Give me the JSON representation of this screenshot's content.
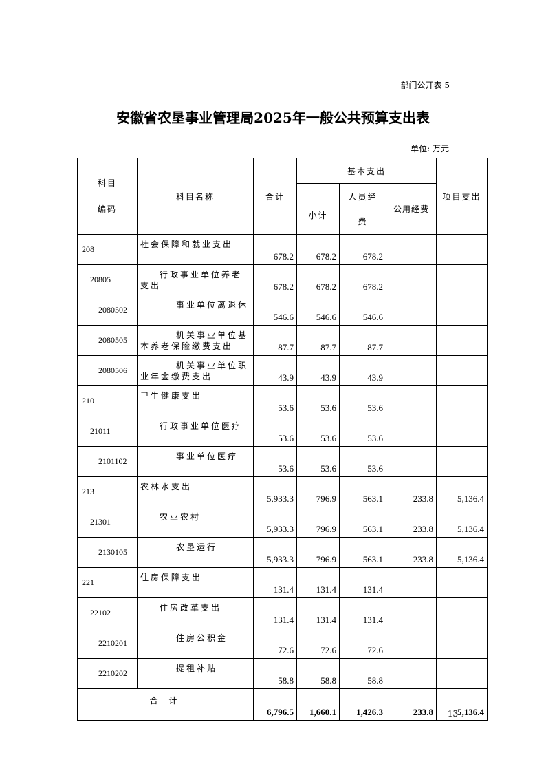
{
  "doc_tag": "部门公开表 5",
  "title": "安徽省农垦事业管理局2025年一般公共预算支出表",
  "unit": "单位: 万元",
  "headers": {
    "code": "科目编码",
    "code_l1": "科目",
    "code_l2": "编码",
    "name": "科目名称",
    "total": "合计",
    "basic": "基本支出",
    "subtotal": "小计",
    "personnel": "人员经费",
    "personnel_l1": "人员经",
    "personnel_l2": "费",
    "public": "公用经费",
    "project": "项目支出"
  },
  "rows": [
    {
      "level": 1,
      "code": "208",
      "name": "社会保障和就业支出",
      "total": "678.2",
      "subtotal": "678.2",
      "personnel": "678.2",
      "public": "",
      "project": ""
    },
    {
      "level": 2,
      "code": "20805",
      "name": "行政事业单位养老支出",
      "total": "678.2",
      "subtotal": "678.2",
      "personnel": "678.2",
      "public": "",
      "project": ""
    },
    {
      "level": 3,
      "code": "2080502",
      "name": "事业单位离退休",
      "total": "546.6",
      "subtotal": "546.6",
      "personnel": "546.6",
      "public": "",
      "project": ""
    },
    {
      "level": 3,
      "code": "2080505",
      "name": "机关事业单位基本养老保险缴费支出",
      "total": "87.7",
      "subtotal": "87.7",
      "personnel": "87.7",
      "public": "",
      "project": ""
    },
    {
      "level": 3,
      "code": "2080506",
      "name": "机关事业单位职业年金缴费支出",
      "total": "43.9",
      "subtotal": "43.9",
      "personnel": "43.9",
      "public": "",
      "project": ""
    },
    {
      "level": 1,
      "code": "210",
      "name": "卫生健康支出",
      "total": "53.6",
      "subtotal": "53.6",
      "personnel": "53.6",
      "public": "",
      "project": ""
    },
    {
      "level": 2,
      "code": "21011",
      "name": "行政事业单位医疗",
      "total": "53.6",
      "subtotal": "53.6",
      "personnel": "53.6",
      "public": "",
      "project": ""
    },
    {
      "level": 3,
      "code": "2101102",
      "name": "事业单位医疗",
      "total": "53.6",
      "subtotal": "53.6",
      "personnel": "53.6",
      "public": "",
      "project": ""
    },
    {
      "level": 1,
      "code": "213",
      "name": "农林水支出",
      "total": "5,933.3",
      "subtotal": "796.9",
      "personnel": "563.1",
      "public": "233.8",
      "project": "5,136.4"
    },
    {
      "level": 2,
      "code": "21301",
      "name": "农业农村",
      "total": "5,933.3",
      "subtotal": "796.9",
      "personnel": "563.1",
      "public": "233.8",
      "project": "5,136.4"
    },
    {
      "level": 3,
      "code": "2130105",
      "name": "农垦运行",
      "total": "5,933.3",
      "subtotal": "796.9",
      "personnel": "563.1",
      "public": "233.8",
      "project": "5,136.4"
    },
    {
      "level": 1,
      "code": "221",
      "name": "住房保障支出",
      "total": "131.4",
      "subtotal": "131.4",
      "personnel": "131.4",
      "public": "",
      "project": ""
    },
    {
      "level": 2,
      "code": "22102",
      "name": "住房改革支出",
      "total": "131.4",
      "subtotal": "131.4",
      "personnel": "131.4",
      "public": "",
      "project": ""
    },
    {
      "level": 3,
      "code": "2210201",
      "name": "住房公积金",
      "total": "72.6",
      "subtotal": "72.6",
      "personnel": "72.6",
      "public": "",
      "project": ""
    },
    {
      "level": 3,
      "code": "2210202",
      "name": "提租补贴",
      "total": "58.8",
      "subtotal": "58.8",
      "personnel": "58.8",
      "public": "",
      "project": ""
    }
  ],
  "total_row": {
    "label": "合 计",
    "total": "6,796.5",
    "subtotal": "1,660.1",
    "personnel": "1,426.3",
    "public": "233.8",
    "project": "5,136.4"
  },
  "page_number": "- 13 -"
}
